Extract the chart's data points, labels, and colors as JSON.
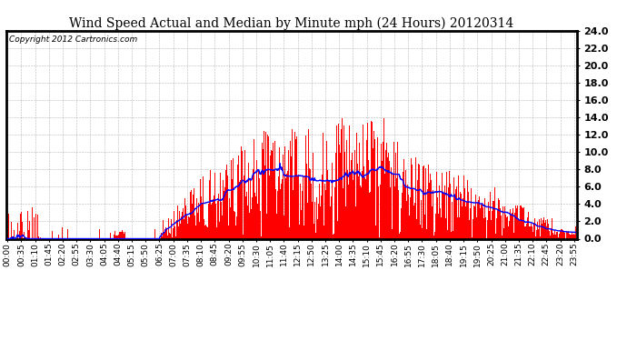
{
  "title": "Wind Speed Actual and Median by Minute mph (24 Hours) 20120314",
  "copyright": "Copyright 2012 Cartronics.com",
  "ylim": [
    0,
    24.0
  ],
  "yticks": [
    0.0,
    2.0,
    4.0,
    6.0,
    8.0,
    10.0,
    12.0,
    14.0,
    16.0,
    18.0,
    20.0,
    22.0,
    24.0
  ],
  "bar_color": "#ff0000",
  "line_color": "#0000ff",
  "bg_color": "#ffffff",
  "grid_color": "#888888",
  "title_fontsize": 10,
  "copyright_fontsize": 6.5,
  "tick_fontsize": 6.5,
  "ytick_fontsize": 8
}
